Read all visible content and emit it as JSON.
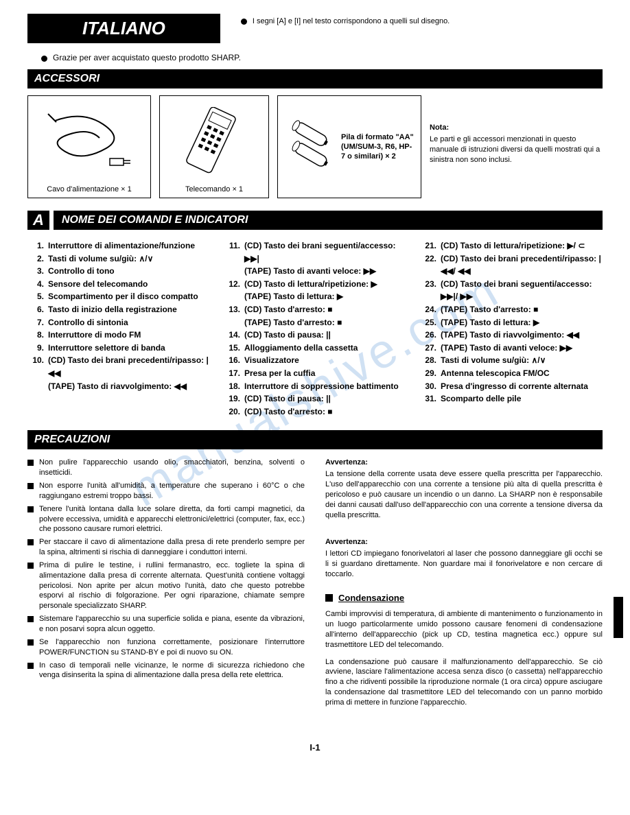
{
  "header": {
    "title": "ITALIANO",
    "note": "I segni [A] e [I] nel testo corrispondono a quelli sul disegno."
  },
  "thanks": "Grazie per aver acquistato questo prodotto SHARP.",
  "sections": {
    "accessori": "ACCESSORI",
    "comandi": "NOME DEI COMANDI E INDICATORI",
    "comandi_letter": "A",
    "precauzioni": "PRECAUZIONI"
  },
  "accessories": {
    "item1_caption": "Cavo d'alimentazione × 1",
    "item2_caption": "Telecomando × 1",
    "item3_caption": "Pila di formato \"AA\" (UM/SUM-3, R6, HP-7 o similari) × 2",
    "note_title": "Nota:",
    "note_body": "Le parti e gli accessori menzionati in questo manuale di istruzioni diversi da quelli mostrati qui a sinistra non sono inclusi."
  },
  "controls": {
    "col1": [
      {
        "n": "1.",
        "t": "Interruttore di alimentazione/funzione"
      },
      {
        "n": "2.",
        "t": "Tasti di volume su/giù: ∧/∨"
      },
      {
        "n": "3.",
        "t": "Controllo di tono"
      },
      {
        "n": "4.",
        "t": "Sensore del telecomando"
      },
      {
        "n": "5.",
        "t": "Scompartimento per il disco compatto"
      },
      {
        "n": "6.",
        "t": "Tasto di inizio della registrazione"
      },
      {
        "n": "7.",
        "t": "Controllo di sintonia"
      },
      {
        "n": "8.",
        "t": "Interruttore di modo FM"
      },
      {
        "n": "9.",
        "t": "Interruttore selettore di banda"
      },
      {
        "n": "10.",
        "t": "(CD) Tasto dei brani precedenti/ripasso: |◀◀"
      }
    ],
    "col1_sub": "(TAPE) Tasto di riavvolgimento: ◀◀",
    "col2": [
      {
        "n": "11.",
        "t": "(CD) Tasto dei brani seguenti/accesso: ▶▶|"
      },
      {
        "n": "",
        "t": "(TAPE) Tasto di avanti veloce: ▶▶",
        "sub": true
      },
      {
        "n": "12.",
        "t": "(CD) Tasto di lettura/ripetizione: ▶"
      },
      {
        "n": "",
        "t": "(TAPE) Tasto di lettura: ▶",
        "sub": true
      },
      {
        "n": "13.",
        "t": "(CD) Tasto d'arresto: ■"
      },
      {
        "n": "",
        "t": "(TAPE) Tasto d'arresto: ■",
        "sub": true
      },
      {
        "n": "14.",
        "t": "(CD) Tasto di pausa: ||"
      },
      {
        "n": "15.",
        "t": "Alloggiamento della cassetta"
      },
      {
        "n": "16.",
        "t": "Visualizzatore"
      },
      {
        "n": "17.",
        "t": "Presa per la cuffia"
      },
      {
        "n": "18.",
        "t": "Interruttore di soppressione battimento"
      },
      {
        "n": "19.",
        "t": "(CD) Tasto di pausa: ||"
      },
      {
        "n": "20.",
        "t": "(CD) Tasto d'arresto: ■"
      }
    ],
    "col3": [
      {
        "n": "21.",
        "t": "(CD) Tasto di lettura/ripetizione: ▶/ ⊂"
      },
      {
        "n": "22.",
        "t": "(CD) Tasto dei brani precedenti/ripasso: |◀◀/ ◀◀"
      },
      {
        "n": "23.",
        "t": "(CD) Tasto dei brani seguenti/accesso: ▶▶|/ ▶▶"
      },
      {
        "n": "24.",
        "t": "(TAPE) Tasto d'arresto: ■"
      },
      {
        "n": "25.",
        "t": "(TAPE) Tasto di lettura: ▶"
      },
      {
        "n": "26.",
        "t": "(TAPE) Tasto di riavvolgimento: ◀◀"
      },
      {
        "n": "27.",
        "t": "(TAPE) Tasto di avanti veloce: ▶▶"
      },
      {
        "n": "28.",
        "t": "Tasti di volume su/giù: ∧/∨"
      },
      {
        "n": "29.",
        "t": "Antenna telescopica FM/OC"
      },
      {
        "n": "30.",
        "t": "Presa d'ingresso di corrente alternata"
      },
      {
        "n": "31.",
        "t": "Scomparto delle pile"
      }
    ]
  },
  "precautions": {
    "left": [
      "Non pulire l'apparecchio usando olio, smacchiatori, benzina, solventi o insetticidi.",
      "Non esporre l'unità all'umidità, a temperature che superano i 60°C o che raggiungano estremi troppo bassi.",
      "Tenere l'unità lontana dalla luce solare diretta, da forti campi magnetici, da polvere eccessiva, umidità e apparecchi elettronici/elettrici (computer, fax, ecc.) che possono causare rumori elettrici.",
      "Per staccare il cavo di alimentazione dalla presa di rete prenderlo sempre per la spina, altrimenti si rischia di danneggiare i conduttori interni.",
      "Prima di pulire le testine, i rullini fermanastro, ecc. togliete la spina di alimentazione dalla presa di corrente alternata.\nQuest'unità contiene voltaggi pericolosi.\nNon aprite per alcun motivo l'unità, dato che questo potrebbe esporvi al rischio di folgorazione. Per ogni riparazione, chiamate sempre personale specializzato SHARP.",
      "Sistemare l'apparecchio su una superficie solida e piana, esente da vibrazioni, e non posarvi sopra alcun oggetto.",
      "Se l'apparecchio non funziona correttamente, posizionare l'interruttore POWER/FUNCTION su STAND-BY e poi di nuovo su ON.",
      "In caso di temporali nelle vicinanze, le norme di sicurezza richiedono che venga disinserita la spina di alimentazione dalla presa della rete elettrica."
    ],
    "right": {
      "avv1_title": "Avvertenza:",
      "avv1_body": "La tensione della corrente usata deve essere quella prescritta per l'apparecchio. L'uso dell'apparecchio con una corrente a tensione più alta di quella prescritta è pericoloso e può causare un incendio o un danno. La SHARP non è responsabile dei danni causati dall'uso dell'apparecchio con una corrente a tensione diversa da quella prescritta.",
      "avv2_title": "Avvertenza:",
      "avv2_body": "I lettori CD impiegano fonorivelatori al laser che possono danneggiare gli occhi se li si guardano direttamente. Non guardare mai il fonorivelatore e non cercare di toccarlo.",
      "cond_title": "Condensazione",
      "cond_p1": "Cambi improvvisi di temperatura, di ambiente di mantenimento o funzionamento in un luogo particolarmente umido possono causare fenomeni di condensazione all'interno dell'apparecchio (pick up CD, testina magnetica ecc.) oppure sul trasmettitore LED del telecomando.",
      "cond_p2": "La condensazione può causare il malfunzionamento dell'apparecchio. Se ciò avviene, lasciare l'alimentazione accesa senza disco (o cassetta) nell'apparecchio fino a che ridiventi possibile la riproduzione normale (1 ora circa) oppure asciugare la condensazione dal trasmettitore LED del telecomando con un panno morbido prima di mettere in funzione l'apparecchio."
    }
  },
  "page_number": "I-1",
  "watermark": "manualshive.com"
}
